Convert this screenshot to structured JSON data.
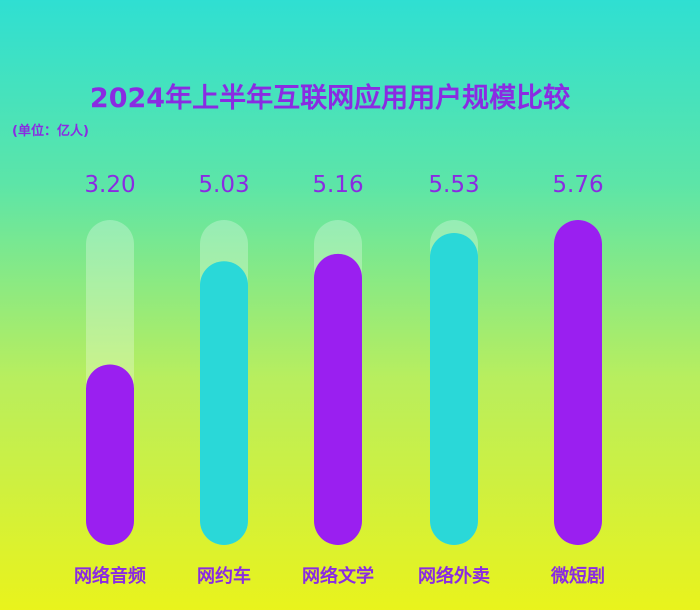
{
  "chart_data": {
    "type": "bar",
    "title": "2024年上半年互联网应用用户规模比较",
    "unit": "(单位：亿人)",
    "categories": [
      "网络音频",
      "网约车",
      "网络文学",
      "网络外卖",
      "微短剧"
    ],
    "values": [
      3.2,
      5.03,
      5.16,
      5.53,
      5.76
    ],
    "value_labels": [
      "3.20",
      "5.03",
      "5.16",
      "5.53",
      "5.76"
    ],
    "bar_colors": [
      "#9a1ff0",
      "#2ad8d8",
      "#9a1ff0",
      "#2ad8d8",
      "#9a1ff0"
    ],
    "ylim": [
      0,
      5.76
    ],
    "grid": false,
    "legend": "none"
  }
}
